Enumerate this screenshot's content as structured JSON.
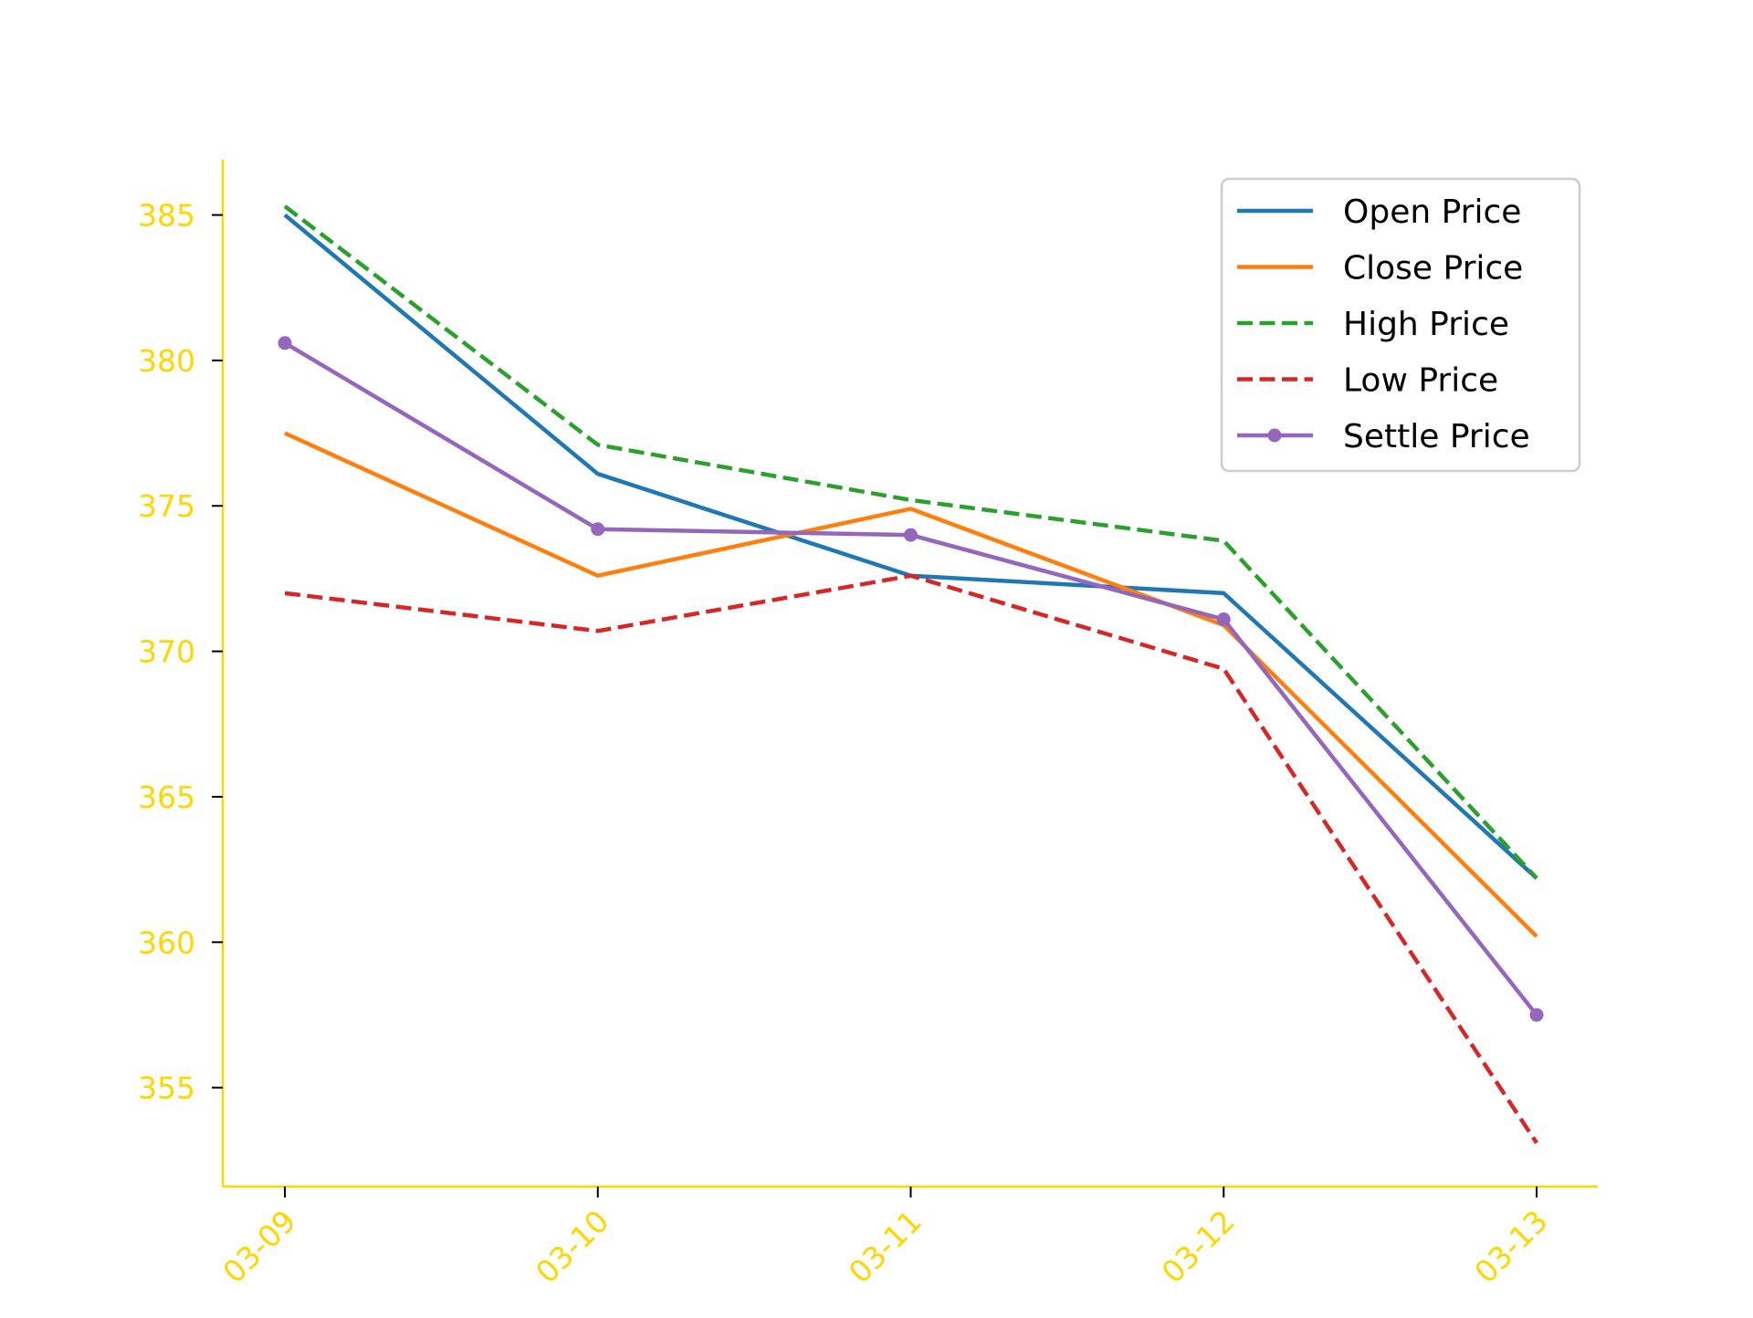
{
  "chart_data": {
    "type": "line",
    "title": "",
    "xlabel": "",
    "ylabel": "",
    "categories": [
      "03-09",
      "03-10",
      "03-11",
      "03-12",
      "03-13"
    ],
    "ylim": [
      351.6,
      386.9
    ],
    "yticks": [
      355,
      360,
      365,
      370,
      375,
      380,
      385
    ],
    "grid": false,
    "legend_position": "top-right",
    "axis_color": "#FFD700",
    "series": [
      {
        "name": "Open Price",
        "color": "#1f77b4",
        "style": "solid",
        "marker": false,
        "values": [
          385.0,
          376.1,
          372.6,
          372.0,
          362.2
        ]
      },
      {
        "name": "Close Price",
        "color": "#ff7f0e",
        "style": "solid",
        "marker": false,
        "values": [
          377.5,
          372.6,
          374.9,
          370.9,
          360.2
        ]
      },
      {
        "name": "High Price",
        "color": "#2ca02c",
        "style": "dashed",
        "marker": false,
        "values": [
          385.3,
          377.1,
          375.2,
          373.8,
          362.2
        ]
      },
      {
        "name": "Low Price",
        "color": "#d62728",
        "style": "dashed",
        "marker": false,
        "values": [
          372.0,
          370.7,
          372.6,
          369.4,
          353.1
        ]
      },
      {
        "name": "Settle Price",
        "color": "#9467bd",
        "style": "solid",
        "marker": true,
        "values": [
          380.6,
          374.2,
          374.0,
          371.1,
          357.5
        ]
      }
    ]
  }
}
